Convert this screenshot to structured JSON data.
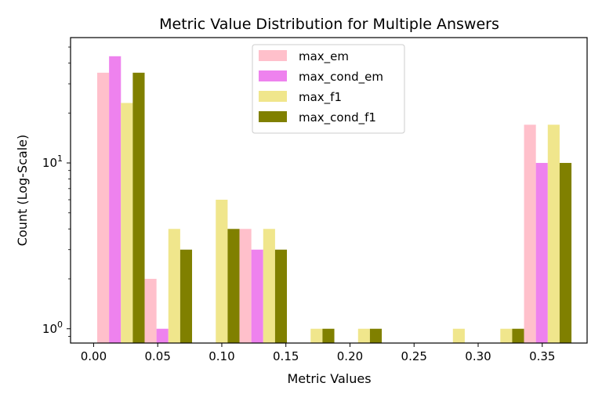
{
  "chart_data": {
    "type": "bar",
    "title": "Metric Value Distribution for Multiple Answers",
    "xlabel": "Metric Values",
    "ylabel": "Count (Log-Scale)",
    "yscale": "log",
    "xlim": [
      -0.018,
      0.385
    ],
    "ylim": [
      0.82,
      57
    ],
    "x_ticks": [
      {
        "value": 0.0,
        "label": "0.00"
      },
      {
        "value": 0.05,
        "label": "0.05"
      },
      {
        "value": 0.1,
        "label": "0.10"
      },
      {
        "value": 0.15,
        "label": "0.15"
      },
      {
        "value": 0.2,
        "label": "0.20"
      },
      {
        "value": 0.25,
        "label": "0.25"
      },
      {
        "value": 0.3,
        "label": "0.30"
      },
      {
        "value": 0.35,
        "label": "0.35"
      }
    ],
    "y_ticks": [
      {
        "value": 1,
        "base": "10",
        "exp": "0"
      },
      {
        "value": 10,
        "base": "10",
        "exp": "1"
      }
    ],
    "legend_position": "top-center",
    "bin_edges": [
      0.0028,
      0.0398,
      0.0768,
      0.1138,
      0.1508,
      0.1878,
      0.2248,
      0.2618,
      0.2988,
      0.3358,
      0.3728
    ],
    "series": [
      {
        "name": "max_em",
        "color": "#ffc0cb",
        "values": [
          35,
          2,
          0,
          4,
          0,
          0,
          0,
          0,
          0,
          17
        ]
      },
      {
        "name": "max_cond_em",
        "color": "#ee82ee",
        "values": [
          44,
          1,
          0,
          3,
          0,
          0,
          0,
          0,
          0,
          10
        ]
      },
      {
        "name": "max_f1",
        "color": "#f0e68c",
        "values": [
          23,
          4,
          6,
          4,
          1,
          1,
          0,
          1,
          1,
          17
        ]
      },
      {
        "name": "max_cond_f1",
        "color": "#808000",
        "values": [
          35,
          3,
          4,
          3,
          1,
          1,
          0,
          0,
          1,
          10
        ]
      }
    ]
  }
}
